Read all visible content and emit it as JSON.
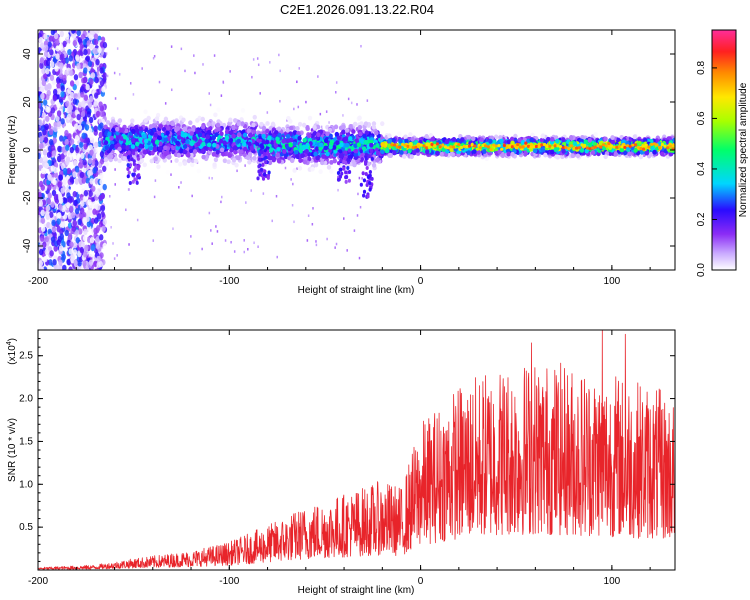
{
  "title": "C2E1.2026.091.13.22.R04",
  "chart_data": [
    {
      "type": "heatmap",
      "title": "C2E1.2026.091.13.22.R04",
      "xlabel": "Height of straight line (km)",
      "ylabel": "Frequency (Hz)",
      "xlim": [
        -200,
        133
      ],
      "ylim": [
        -50,
        50
      ],
      "xticks": [
        -200,
        -100,
        0,
        100
      ],
      "yticks": [
        -40,
        -20,
        0,
        20,
        40
      ],
      "colorbar": {
        "label": "Normalized spectral amplitude",
        "range": [
          0.0,
          0.95
        ],
        "ticks": [
          "0.0",
          "0.2",
          "0.4",
          "0.6",
          "0.8"
        ],
        "colors": [
          "#ffffff",
          "#c9a9ff",
          "#8b2cf5",
          "#2a0bff",
          "#00d6ff",
          "#00ff6a",
          "#a8ff00",
          "#ffe800",
          "#ff8c00",
          "#ff2020",
          "#ff2d9a"
        ]
      },
      "bands": [
        {
          "x_start": -200,
          "x_end": -165,
          "f_center": 0,
          "f_halfwidth": 50,
          "amplitude": 0.2,
          "note": "broadband diffuse noise"
        },
        {
          "x_start": -165,
          "x_end": -85,
          "f_center": 4,
          "f_halfwidth": 7,
          "amplitude": 0.35
        },
        {
          "x_start": -85,
          "x_end": -20,
          "f_center": 2,
          "f_halfwidth": 7,
          "amplitude": 0.4
        },
        {
          "x_start": -20,
          "x_end": 133,
          "f_center": 1.5,
          "f_halfwidth": 3,
          "amplitude": 0.7
        }
      ],
      "peak_line": {
        "x_start": -15,
        "x_end": 133,
        "frequency": 1.5,
        "amplitude": 0.9
      }
    },
    {
      "type": "line",
      "xlabel": "Height of straight line (km)",
      "ylabel": "SNR (10 * v/v)",
      "y_multiplier": "(x10",
      "y_multiplier_exp": "4",
      "y_multiplier_close": ")",
      "xlim": [
        -200,
        133
      ],
      "ylim": [
        0,
        28000
      ],
      "xticks": [
        -200,
        -100,
        0,
        100
      ],
      "yticks": [
        5000,
        10000,
        15000,
        20000,
        25000
      ],
      "ytick_labels": [
        "0.5",
        "1.0",
        "1.5",
        "2.0",
        "2.5"
      ],
      "color": "#e8242a",
      "envelope": [
        {
          "x": -200,
          "y": 200
        },
        {
          "x": -170,
          "y": 400
        },
        {
          "x": -150,
          "y": 900
        },
        {
          "x": -120,
          "y": 1500
        },
        {
          "x": -100,
          "y": 2200
        },
        {
          "x": -80,
          "y": 3500
        },
        {
          "x": -60,
          "y": 5000
        },
        {
          "x": -40,
          "y": 6000
        },
        {
          "x": -20,
          "y": 7000
        },
        {
          "x": -10,
          "y": 6500
        },
        {
          "x": 0,
          "y": 11500
        },
        {
          "x": 10,
          "y": 13000
        },
        {
          "x": 20,
          "y": 14500
        },
        {
          "x": 40,
          "y": 16000
        },
        {
          "x": 60,
          "y": 16500
        },
        {
          "x": 80,
          "y": 16000
        },
        {
          "x": 100,
          "y": 15500
        },
        {
          "x": 120,
          "y": 14500
        },
        {
          "x": 133,
          "y": 13500
        }
      ],
      "peak_values": [
        {
          "x": 58,
          "y": 26500
        },
        {
          "x": 95,
          "y": 28000
        },
        {
          "x": 107,
          "y": 27500
        }
      ]
    }
  ]
}
